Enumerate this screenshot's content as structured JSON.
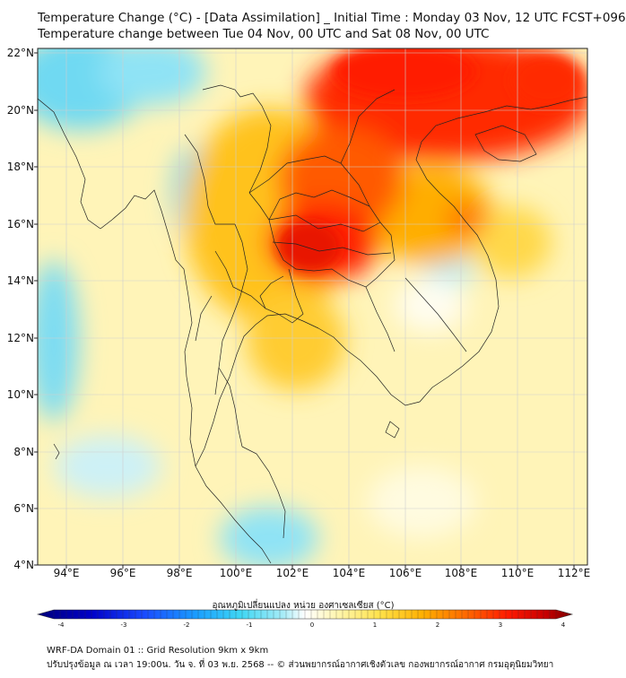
{
  "header": {
    "title_line1": "Temperature Change (°C) - [Data Assimilation] _ Initial Time : Monday 03 Nov, 12 UTC FCST+096",
    "title_line2": "Temperature change between Tue 04 Nov, 00 UTC and Sat 08 Nov, 00 UTC"
  },
  "axes": {
    "lat_labels": [
      "22°N",
      "20°N",
      "18°N",
      "16°N",
      "14°N",
      "12°N",
      "10°N",
      "8°N",
      "6°N",
      "4°N"
    ],
    "lon_labels": [
      "94°E",
      "96°E",
      "98°E",
      "100°E",
      "102°E",
      "104°E",
      "106°E",
      "108°E",
      "110°E",
      "112°E"
    ]
  },
  "colorbar": {
    "title": "อุณหภูมิเปลี่ยนแปลง หน่วย องศาเซลเซียส (°C)",
    "ticks": [
      "-4",
      "-3",
      "-2",
      "-1",
      "0",
      "1",
      "2",
      "3",
      "4"
    ],
    "stops": [
      "#00007a",
      "#0000c8",
      "#1a4bff",
      "#1aa0ff",
      "#3fd7f4",
      "#a9ecf7",
      "#ffffff",
      "#fff6b0",
      "#ffe24a",
      "#ffb000",
      "#ff6a00",
      "#ff1a00",
      "#c80000",
      "#7a0000"
    ]
  },
  "footer": {
    "line1": "WRF-DA Domain 01 :: Grid Resolution 9km x 9km",
    "line2": "ปรับปรุงข้อมูล ณ เวลา 19:00น. วัน จ. ที่ 03 พ.ย. 2568 -- © ส่วนพยากรณ์อากาศเชิงตัวเลข กองพยากรณ์อากาศ กรมอุตุนิยมวิทยา"
  }
}
